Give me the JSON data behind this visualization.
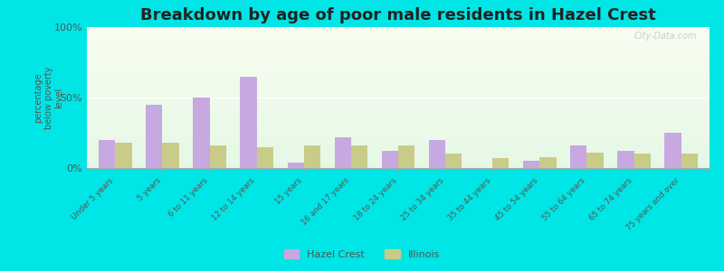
{
  "title": "Breakdown by age of poor male residents in Hazel Crest",
  "ylabel": "percentage\nbelow poverty\nlevel",
  "categories": [
    "Under 5 years",
    "5 years",
    "6 to 11 years",
    "12 to 14 years",
    "15 years",
    "16 and 17 years",
    "18 to 24 years",
    "25 to 34 years",
    "35 to 44 years",
    "45 to 54 years",
    "55 to 64 years",
    "65 to 74 years",
    "75 years and over"
  ],
  "hazel_crest": [
    20,
    45,
    50,
    65,
    4,
    22,
    12,
    20,
    0,
    5,
    16,
    12,
    25
  ],
  "illinois": [
    18,
    18,
    16,
    15,
    16,
    16,
    16,
    10,
    7,
    8,
    11,
    10,
    10
  ],
  "hazel_crest_color": "#c8a8e0",
  "illinois_color": "#c8cc88",
  "ylim": [
    0,
    100
  ],
  "yticks": [
    0,
    50,
    100
  ],
  "ytick_labels": [
    "0%",
    "50%",
    "100%"
  ],
  "outer_bg": "#00e5e5",
  "title_color": "#222222",
  "title_fontsize": 13,
  "bar_width": 0.35,
  "watermark": "City-Data.com"
}
